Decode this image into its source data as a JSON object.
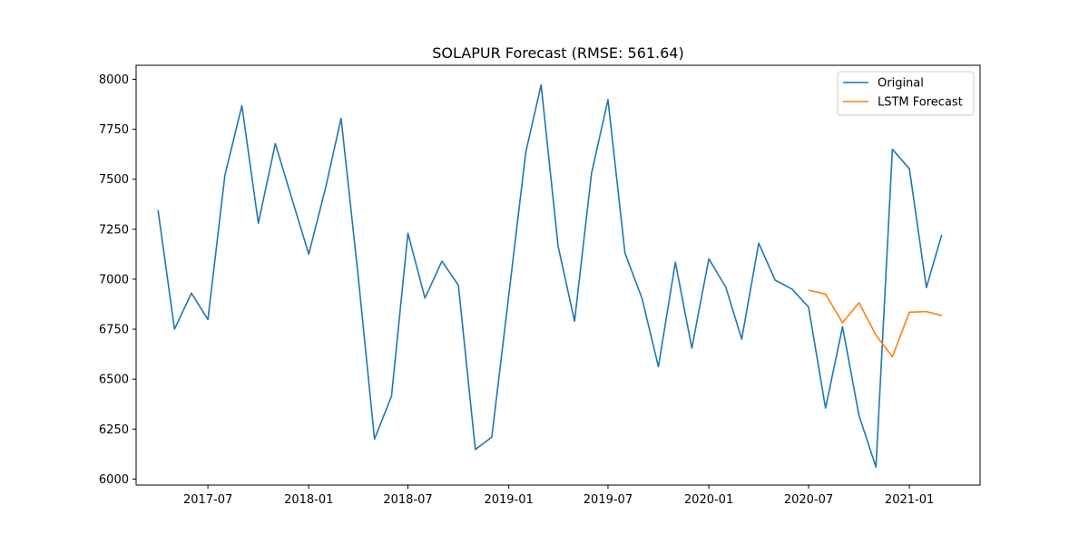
{
  "chart_data": {
    "type": "line",
    "title": "SOLAPUR Forecast (RMSE: 561.64)",
    "xlabel": "",
    "ylabel": "",
    "ylim": [
      5970,
      8070
    ],
    "xlim": [
      "2017-02-20",
      "2021-05-10"
    ],
    "grid": false,
    "legend_position": "top-right",
    "x_ticks": [
      "2017-07",
      "2018-01",
      "2018-07",
      "2019-01",
      "2019-07",
      "2020-01",
      "2020-07",
      "2021-01"
    ],
    "y_ticks": [
      6000,
      6250,
      6500,
      6750,
      7000,
      7250,
      7500,
      7750,
      8000
    ],
    "series": [
      {
        "name": "Original",
        "color": "#1f77b4",
        "x": [
          "2017-04-01",
          "2017-05-01",
          "2017-06-01",
          "2017-07-01",
          "2017-08-01",
          "2017-09-01",
          "2017-10-01",
          "2017-11-01",
          "2017-12-01",
          "2018-01-01",
          "2018-02-01",
          "2018-03-01",
          "2018-04-01",
          "2018-05-01",
          "2018-06-01",
          "2018-07-01",
          "2018-08-01",
          "2018-09-01",
          "2018-10-01",
          "2018-11-01",
          "2018-12-01",
          "2019-01-01",
          "2019-02-01",
          "2019-03-01",
          "2019-04-01",
          "2019-05-01",
          "2019-06-01",
          "2019-07-01",
          "2019-08-01",
          "2019-09-01",
          "2019-10-01",
          "2019-11-01",
          "2019-12-01",
          "2020-01-01",
          "2020-02-01",
          "2020-03-01",
          "2020-04-01",
          "2020-05-01",
          "2020-06-01",
          "2020-07-01",
          "2020-08-01",
          "2020-09-01",
          "2020-10-01",
          "2020-11-01",
          "2020-12-01",
          "2021-01-01",
          "2021-02-01",
          "2021-03-01"
        ],
        "values": [
          7345,
          6750,
          6930,
          6798,
          7520,
          7868,
          7280,
          7678,
          7405,
          7125,
          7460,
          7805,
          7020,
          6200,
          6415,
          7230,
          6905,
          7090,
          6970,
          6148,
          6210,
          6920,
          7635,
          7972,
          7165,
          6790,
          7530,
          7898,
          7130,
          6905,
          6562,
          7085,
          6655,
          7102,
          6960,
          6700,
          7180,
          6995,
          6950,
          6860,
          6355,
          6762,
          6318,
          6060,
          7650,
          7552,
          6958,
          7222
        ]
      },
      {
        "name": "LSTM Forecast",
        "color": "#ff7f0e",
        "x": [
          "2020-07-01",
          "2020-08-01",
          "2020-09-01",
          "2020-10-01",
          "2020-11-01",
          "2020-12-01",
          "2021-01-01",
          "2021-02-01",
          "2021-03-01"
        ],
        "values": [
          6945,
          6925,
          6782,
          6882,
          6720,
          6612,
          6835,
          6838,
          6818
        ]
      }
    ]
  }
}
